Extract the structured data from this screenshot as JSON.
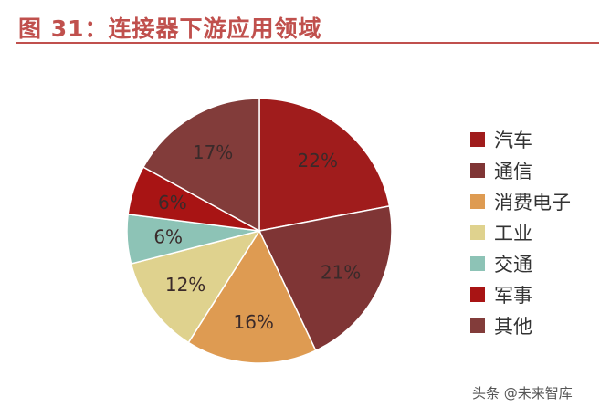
{
  "title": "图 31：连接器下游应用领域",
  "watermark": "头条 @未来智库",
  "colors": {
    "title": "#c0504d"
  },
  "chart_data": {
    "type": "pie",
    "start_angle_deg": 0,
    "direction": "clockwise",
    "slices": [
      {
        "label": "汽车",
        "value": 22,
        "display": "22%",
        "color": "#a01c1c"
      },
      {
        "label": "通信",
        "value": 21,
        "display": "21%",
        "color": "#7f3535"
      },
      {
        "label": "消费电子",
        "value": 16,
        "display": "16%",
        "color": "#de9b52"
      },
      {
        "label": "工业",
        "value": 12,
        "display": "12%",
        "color": "#dfd28e"
      },
      {
        "label": "交通",
        "value": 6,
        "display": "6%",
        "color": "#8dc3b6"
      },
      {
        "label": "军事",
        "value": 6,
        "display": "6%",
        "color": "#a81414"
      },
      {
        "label": "其他",
        "value": 17,
        "display": "17%",
        "color": "#823c3a"
      }
    ],
    "legend_position": "right"
  }
}
